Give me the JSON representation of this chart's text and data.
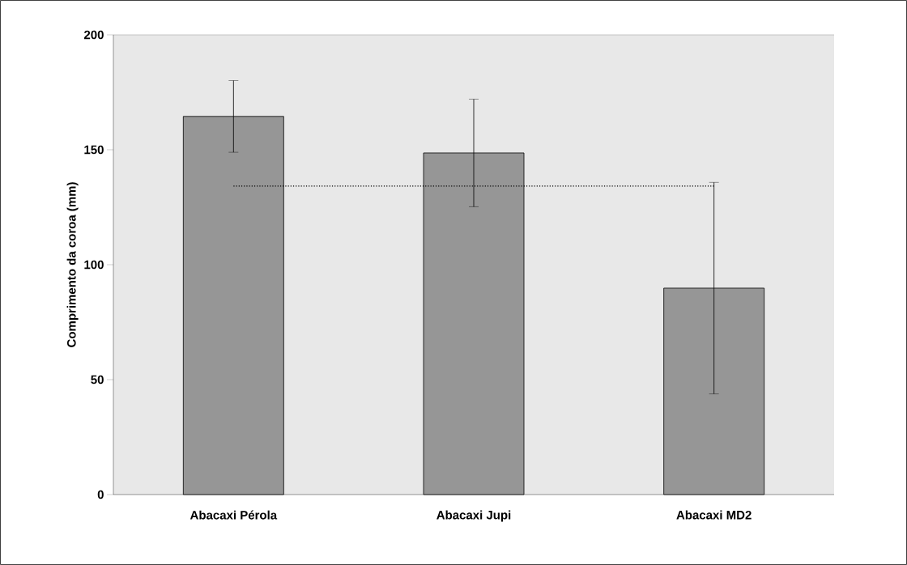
{
  "chart_data": {
    "type": "bar",
    "ylabel": "Comprimento da coroa (mm)",
    "categories": [
      "Abacaxi Pérola",
      "Abacaxi Jupi",
      "Abacaxi MD2"
    ],
    "values": [
      164.5,
      148.6,
      89.8
    ],
    "errors": [
      15.6,
      23.4,
      46
    ],
    "color": "#969696",
    "ylim": [
      0,
      200
    ],
    "yticks": [
      0,
      50,
      100,
      150,
      200
    ],
    "ref_lines": [
      {
        "axis": "y",
        "value": 134.2,
        "line_style": "dotted",
        "color": "#000000"
      }
    ]
  }
}
